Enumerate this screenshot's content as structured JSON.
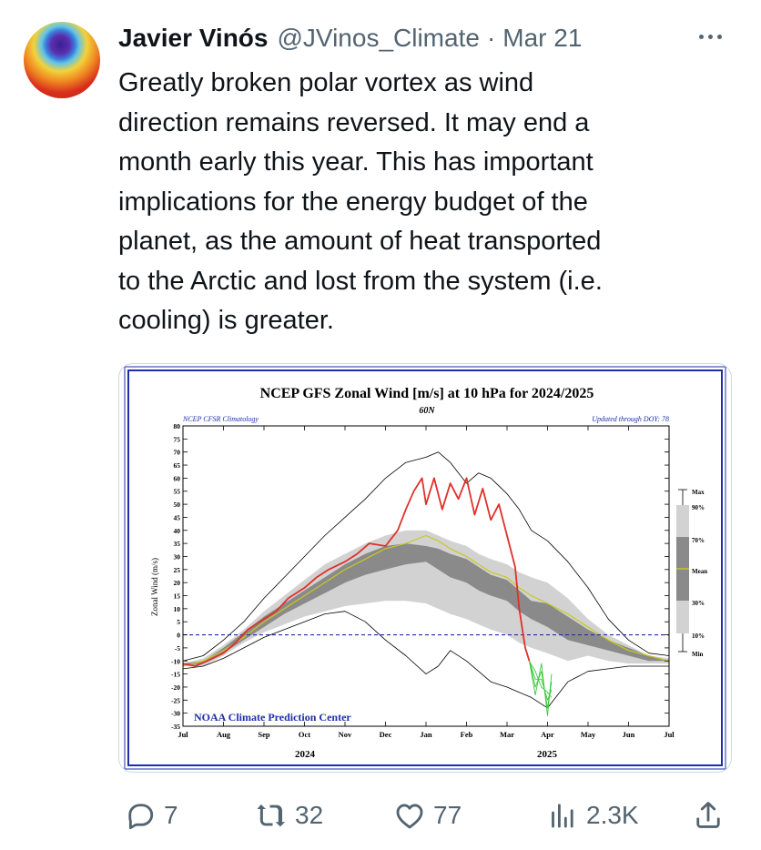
{
  "tweet": {
    "author_name": "Javier Vinós",
    "handle": "@JVinos_Climate",
    "separator": "·",
    "date": "Mar 21",
    "text": "Greatly broken polar vortex as wind\ndirection remains reversed. It may end a\nmonth early this year. This has important\nimplications for the energy budget of the\nplanet, as the amount of heat transported\nto the Arctic and lost from the system (i.e.\ncooling) is greater."
  },
  "actions": {
    "replies": "7",
    "reposts": "32",
    "likes": "77",
    "views": "2.3K"
  },
  "icons": {
    "more": "more-horizontal-icon",
    "reply": "reply-icon",
    "repost": "repost-icon",
    "like": "heart-icon",
    "views": "views-icon",
    "share": "share-icon"
  },
  "colors": {
    "text": "#0f1419",
    "secondary": "#536471",
    "border": "#cfd9de",
    "chart_title": "#000000",
    "chart_blue": "#1e2fa8",
    "series_current": "#e0302a",
    "series_forecast": "#3cc83c",
    "series_mean": "#c8c820",
    "band_outer": "#d2d2d2",
    "band_inner": "#8a8a8a"
  },
  "chart": {
    "title": "NCEP GFS Zonal Wind [m/s] at 10 hPa for 2024/2025",
    "subtitle": "60N",
    "note_left": "NCEP CFSR Climatology",
    "note_right": "Updated through DOY:  78",
    "credit": "NOAA Climate Prediction Center",
    "ylabel": "Zonal Wind (m/s)",
    "year_left": "2024",
    "year_right": "2025",
    "legend": [
      "Max",
      "90%",
      "70%",
      "Mean",
      "30%",
      "10%",
      "Min"
    ]
  },
  "chart_data": {
    "type": "line",
    "title": "NCEP GFS Zonal Wind [m/s] at 10 hPa for 2024/2025",
    "subtitle": "60N",
    "xlabel": "",
    "ylabel": "Zonal Wind (m/s)",
    "ylim": [
      -35,
      80
    ],
    "xlim": [
      0,
      12
    ],
    "x_ticks": [
      "Jul",
      "Aug",
      "Sep",
      "Oct",
      "Nov",
      "Dec",
      "Jan",
      "Feb",
      "Mar",
      "Apr",
      "May",
      "Jun",
      "Jul"
    ],
    "y_ticks": [
      80,
      75,
      70,
      65,
      60,
      55,
      50,
      45,
      40,
      35,
      30,
      25,
      20,
      15,
      10,
      5,
      0,
      -5,
      -10,
      -15,
      -20,
      -25,
      -30,
      -35
    ],
    "reference_line": 0,
    "grid": false,
    "legend_position": "right",
    "series": [
      {
        "name": "Max",
        "x": [
          0,
          0.5,
          1,
          1.5,
          2,
          2.5,
          3,
          3.5,
          4,
          4.5,
          5,
          5.5,
          6,
          6.3,
          6.6,
          7,
          7.3,
          7.6,
          8,
          8.3,
          8.6,
          9,
          9.5,
          10,
          10.5,
          11,
          11.5,
          12
        ],
        "values": [
          -10,
          -8,
          -2,
          5,
          14,
          22,
          30,
          38,
          45,
          52,
          60,
          66,
          68,
          70,
          66,
          58,
          62,
          60,
          54,
          48,
          40,
          36,
          28,
          18,
          6,
          -2,
          -7,
          -8
        ]
      },
      {
        "name": "90%",
        "values": [
          -11,
          -9,
          -4,
          2,
          9,
          15,
          21,
          27,
          31,
          35,
          38,
          40,
          40,
          38,
          36,
          34,
          31,
          29,
          27,
          24,
          22,
          20,
          14,
          6,
          0,
          -4,
          -8,
          -9
        ]
      },
      {
        "name": "70%",
        "values": [
          -11,
          -10,
          -5,
          1,
          7,
          12,
          17,
          22,
          27,
          31,
          34,
          35,
          34,
          33,
          31,
          29,
          26,
          23,
          21,
          17,
          13,
          12,
          7,
          2,
          -2,
          -5,
          -8,
          -10
        ]
      },
      {
        "name": "Mean",
        "values": [
          -12,
          -10,
          -6,
          -1,
          5,
          10,
          15,
          20,
          25,
          29,
          33,
          35,
          38,
          36,
          33,
          30,
          27,
          24,
          22,
          18,
          15,
          12,
          8,
          3,
          -2,
          -6,
          -8,
          -10
        ]
      },
      {
        "name": "30%",
        "values": [
          -12,
          -11,
          -7,
          -2,
          3,
          8,
          12,
          16,
          20,
          23,
          25,
          27,
          28,
          25,
          22,
          20,
          17,
          15,
          13,
          9,
          6,
          3,
          -2,
          -4,
          -6,
          -8,
          -10,
          -10
        ]
      },
      {
        "name": "10%",
        "values": [
          -12,
          -12,
          -8,
          -3,
          1,
          4,
          7,
          9,
          11,
          12,
          13,
          13,
          12,
          10,
          8,
          6,
          4,
          2,
          0,
          -3,
          -5,
          -7,
          -10,
          -8,
          -10,
          -11,
          -11,
          -11
        ]
      },
      {
        "name": "Min",
        "values": [
          -13,
          -12,
          -9,
          -5,
          -1,
          2,
          5,
          8,
          9,
          5,
          -2,
          -8,
          -15,
          -12,
          -6,
          -10,
          -14,
          -18,
          -20,
          -22,
          -24,
          -28,
          -18,
          -14,
          -13,
          -12,
          -12,
          -12
        ]
      }
    ],
    "current_year": {
      "x": [
        0,
        0.3,
        0.6,
        1,
        1.3,
        1.6,
        2,
        2.3,
        2.6,
        3,
        3.3,
        3.6,
        4,
        4.3,
        4.6,
        5,
        5.3,
        5.5,
        5.7,
        5.9,
        6,
        6.2,
        6.4,
        6.6,
        6.8,
        7,
        7.2,
        7.4,
        7.6,
        7.8,
        8,
        8.2,
        8.3,
        8.45,
        8.55
      ],
      "values": [
        -11,
        -12,
        -10,
        -7,
        -3,
        2,
        6,
        9,
        14,
        18,
        22,
        25,
        28,
        31,
        35,
        34,
        40,
        48,
        55,
        60,
        50,
        60,
        48,
        58,
        52,
        60,
        46,
        56,
        44,
        50,
        38,
        26,
        10,
        -5,
        -10
      ]
    },
    "forecast": {
      "x": [
        8.55,
        8.7,
        8.85,
        9.0,
        9.1
      ],
      "values": [
        -10,
        -20,
        -14,
        -28,
        -18
      ]
    }
  }
}
